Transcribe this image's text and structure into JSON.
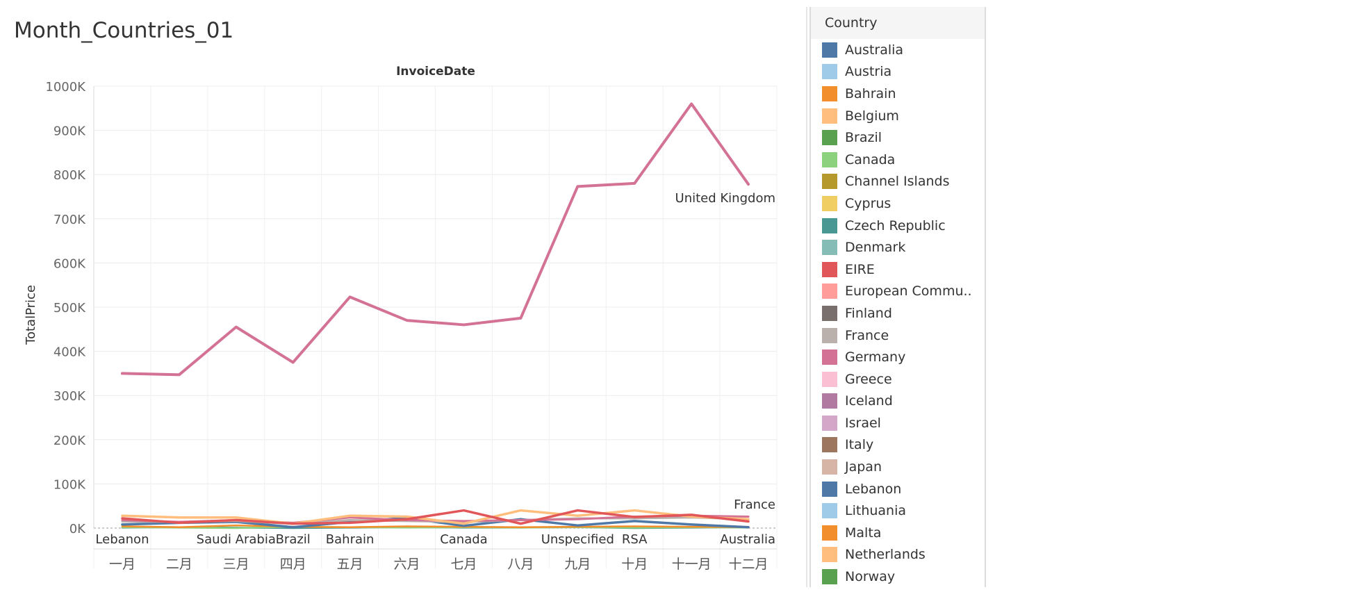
{
  "page": {
    "title": "Month_Countries_01"
  },
  "legend": {
    "title": "Country",
    "items": [
      {
        "label": "Australia",
        "color": "#4e79a7"
      },
      {
        "label": "Austria",
        "color": "#a0cbe8"
      },
      {
        "label": "Bahrain",
        "color": "#f28e2b"
      },
      {
        "label": "Belgium",
        "color": "#ffbe7d"
      },
      {
        "label": "Brazil",
        "color": "#59a14f"
      },
      {
        "label": "Canada",
        "color": "#8cd17d"
      },
      {
        "label": "Channel Islands",
        "color": "#b6992d"
      },
      {
        "label": "Cyprus",
        "color": "#f1ce63"
      },
      {
        "label": "Czech Republic",
        "color": "#499894"
      },
      {
        "label": "Denmark",
        "color": "#86bcb6"
      },
      {
        "label": "EIRE",
        "color": "#e15759"
      },
      {
        "label": "European Commu..",
        "color": "#ff9d9a"
      },
      {
        "label": "Finland",
        "color": "#79706e"
      },
      {
        "label": "France",
        "color": "#bab0ac"
      },
      {
        "label": "Germany",
        "color": "#d37295"
      },
      {
        "label": "Greece",
        "color": "#fabfd2"
      },
      {
        "label": "Iceland",
        "color": "#b07aa1"
      },
      {
        "label": "Israel",
        "color": "#d4a6c8"
      },
      {
        "label": "Italy",
        "color": "#9d7660"
      },
      {
        "label": "Japan",
        "color": "#d7b5a6"
      },
      {
        "label": "Lebanon",
        "color": "#4e79a7"
      },
      {
        "label": "Lithuania",
        "color": "#a0cbe8"
      },
      {
        "label": "Malta",
        "color": "#f28e2b"
      },
      {
        "label": "Netherlands",
        "color": "#ffbe7d"
      },
      {
        "label": "Norway",
        "color": "#59a14f"
      }
    ]
  },
  "chart_data": {
    "type": "line",
    "title": "InvoiceDate",
    "ylabel": "TotalPrice",
    "xlabel": "",
    "categories": [
      "一月",
      "二月",
      "三月",
      "四月",
      "五月",
      "六月",
      "七月",
      "八月",
      "九月",
      "十月",
      "十一月",
      "十二月"
    ],
    "ylim": [
      0,
      1000000
    ],
    "yticks": [
      {
        "value": 0,
        "label": "0K"
      },
      {
        "value": 100000,
        "label": "100K"
      },
      {
        "value": 200000,
        "label": "200K"
      },
      {
        "value": 300000,
        "label": "300K"
      },
      {
        "value": 400000,
        "label": "400K"
      },
      {
        "value": 500000,
        "label": "500K"
      },
      {
        "value": 600000,
        "label": "600K"
      },
      {
        "value": 700000,
        "label": "700K"
      },
      {
        "value": 800000,
        "label": "800K"
      },
      {
        "value": 900000,
        "label": "900K"
      },
      {
        "value": 1000000,
        "label": "1000K"
      }
    ],
    "grid": true,
    "legend_position": "right",
    "series": [
      {
        "name": "United Kingdom",
        "color": "#d37295",
        "width": 4,
        "values": [
          350000,
          347000,
          455000,
          375000,
          523000,
          470000,
          460000,
          475000,
          773000,
          780000,
          960000,
          778000
        ]
      },
      {
        "name": "EIRE",
        "color": "#e15759",
        "width": 3.5,
        "values": [
          22000,
          12000,
          18000,
          10000,
          12000,
          20000,
          40000,
          10000,
          40000,
          25000,
          30000,
          15000
        ]
      },
      {
        "name": "Netherlands",
        "color": "#ffbe7d",
        "width": 3.5,
        "values": [
          28000,
          24000,
          24000,
          10000,
          28000,
          26000,
          10000,
          40000,
          28000,
          40000,
          26000,
          20000
        ]
      },
      {
        "name": "Germany",
        "color": "#d37295",
        "width": 3,
        "values": [
          18000,
          14000,
          18000,
          12000,
          24000,
          18000,
          16000,
          18000,
          20000,
          26000,
          28000,
          26000
        ]
      },
      {
        "name": "France",
        "color": "#bab0ac",
        "width": 3,
        "values": [
          15000,
          14000,
          16000,
          10000,
          18000,
          16000,
          14000,
          18000,
          22000,
          22000,
          24000,
          20000
        ]
      },
      {
        "name": "Australia",
        "color": "#4e79a7",
        "width": 3.5,
        "values": [
          8000,
          12000,
          14000,
          2000,
          14000,
          23000,
          5000,
          20000,
          6000,
          16000,
          8000,
          2000
        ]
      },
      {
        "name": "Bahrain",
        "color": "#f28e2b",
        "width": 2.5,
        "values": [
          4000,
          2000,
          6000,
          3000,
          2000,
          4000,
          3000,
          2000,
          3000,
          4000,
          3000,
          2000
        ]
      },
      {
        "name": "Canada",
        "color": "#8cd17d",
        "width": 2.5,
        "values": [
          2000,
          1000,
          0,
          3000,
          2000,
          1000,
          2000,
          1000,
          2000,
          1000,
          2000,
          1000
        ]
      },
      {
        "name": "Czech Republic",
        "color": "#499894",
        "width": 2.5,
        "values": [
          1000,
          2000,
          1000,
          0,
          1000,
          2000,
          1000,
          1000,
          2000,
          0,
          1000,
          2000
        ]
      }
    ],
    "annotations": [
      {
        "text": "United Kingdom",
        "category_index": 11,
        "value": 778000,
        "placement": "below-left"
      },
      {
        "text": "France",
        "category_index": 11,
        "value": 25000,
        "placement": "above-left"
      },
      {
        "text": "Lebanon",
        "category_index": 0,
        "placement": "bottom"
      },
      {
        "text": "Saudi Arabia",
        "category_index": 2,
        "placement": "bottom"
      },
      {
        "text": "Brazil",
        "category_index": 3,
        "placement": "bottom"
      },
      {
        "text": "Bahrain",
        "category_index": 4,
        "placement": "bottom"
      },
      {
        "text": "Canada",
        "category_index": 6,
        "placement": "bottom"
      },
      {
        "text": "Unspecified",
        "category_index": 8,
        "placement": "bottom"
      },
      {
        "text": "RSA",
        "category_index": 9,
        "placement": "bottom"
      },
      {
        "text": "Australia",
        "category_index": 11,
        "placement": "bottom"
      }
    ]
  }
}
